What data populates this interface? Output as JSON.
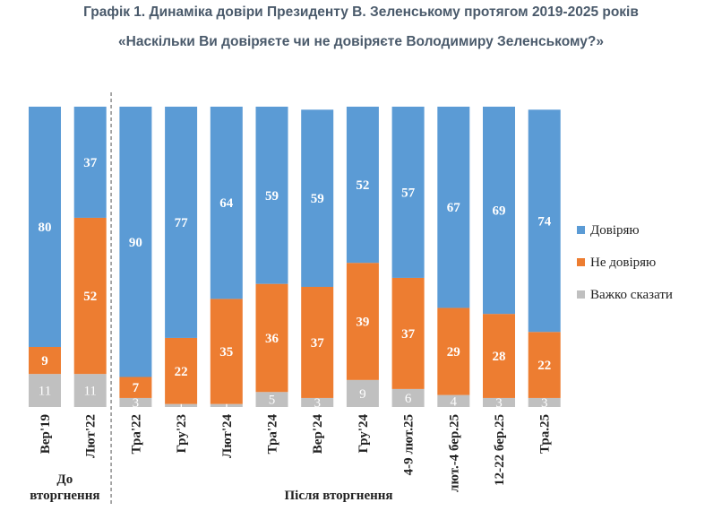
{
  "title": "Графік 1. Динаміка довіри Президенту В. Зеленському протягом 2019-2025 років",
  "subtitle": "«Наскільки Ви довіряєте чи не довіряєте Володимиру Зеленському?»",
  "chart_data": {
    "type": "bar",
    "stacked": true,
    "categories": [
      "Вер'19",
      "Лют'22",
      "Тра'22",
      "Гру'23",
      "Лют'24",
      "Тра'24",
      "Вер'24",
      "Гру'24",
      "4-9 лют.25",
      "лют.-4 бер.25",
      "12-22 бер.25",
      "Тра.25"
    ],
    "series": [
      {
        "name": "Важко сказати",
        "values": [
          11,
          11,
          3,
          1,
          1,
          5,
          3,
          9,
          6,
          4,
          3,
          3
        ],
        "color": "#c0c0c0"
      },
      {
        "name": "Не довіряю",
        "values": [
          9,
          52,
          7,
          22,
          35,
          36,
          37,
          39,
          37,
          29,
          28,
          22
        ],
        "color": "#ed7d31"
      },
      {
        "name": "Довіряю",
        "values": [
          80,
          37,
          90,
          77,
          64,
          59,
          59,
          52,
          57,
          67,
          69,
          74
        ],
        "color": "#5b9bd5"
      }
    ],
    "legend": [
      "Довіряю",
      "Не довіряю",
      "Важко сказати"
    ],
    "legend_position": "right",
    "ylim": [
      0,
      100
    ],
    "groups": [
      {
        "label": "До вторгнення",
        "count": 2
      },
      {
        "label": "Після вторгнення",
        "count": 10
      }
    ]
  }
}
